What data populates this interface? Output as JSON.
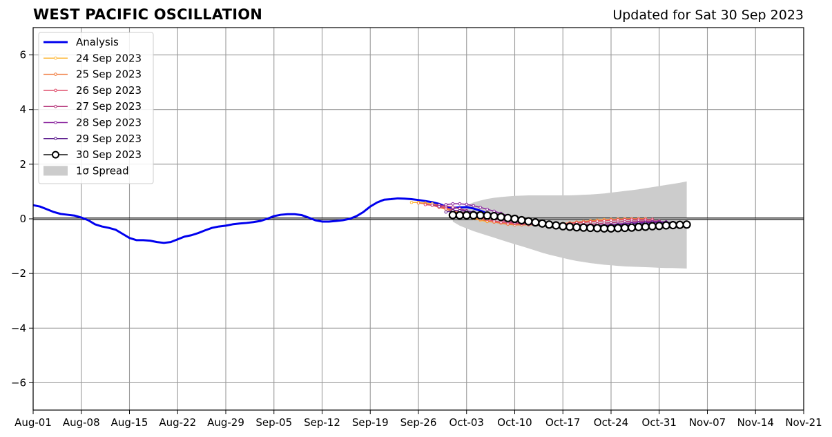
{
  "chart_data": {
    "type": "line",
    "title": "WEST PACIFIC OSCILLATION",
    "subtitle": "Updated for Sat 30 Sep 2023",
    "xlabel": "",
    "ylabel": "",
    "xlim": [
      "2023-08-01",
      "2023-11-21"
    ],
    "ylim": [
      -7,
      7
    ],
    "xticks": [
      "Aug-01",
      "Aug-08",
      "Aug-15",
      "Aug-22",
      "Aug-29",
      "Sep-05",
      "Sep-12",
      "Sep-19",
      "Sep-26",
      "Oct-03",
      "Oct-10",
      "Oct-17",
      "Oct-24",
      "Oct-31",
      "Nov-07",
      "Nov-14",
      "Nov-21"
    ],
    "yticks": [
      -6,
      -4,
      -2,
      0,
      2,
      4,
      6
    ],
    "grid": true,
    "legend_position": "top-left",
    "analysis": {
      "name": "Analysis",
      "color": "#0000ee",
      "start": "2023-08-01",
      "values": [
        0.5,
        0.45,
        0.35,
        0.25,
        0.18,
        0.15,
        0.12,
        0.05,
        -0.05,
        -0.2,
        -0.28,
        -0.33,
        -0.4,
        -0.55,
        -0.7,
        -0.78,
        -0.78,
        -0.8,
        -0.85,
        -0.88,
        -0.85,
        -0.75,
        -0.65,
        -0.6,
        -0.52,
        -0.42,
        -0.33,
        -0.28,
        -0.25,
        -0.2,
        -0.17,
        -0.15,
        -0.12,
        -0.08,
        0.0,
        0.1,
        0.15,
        0.17,
        0.17,
        0.14,
        0.05,
        -0.05,
        -0.1,
        -0.1,
        -0.08,
        -0.05,
        0.0,
        0.1,
        0.25,
        0.45,
        0.6,
        0.7,
        0.72,
        0.75,
        0.74,
        0.72,
        0.69,
        0.65,
        0.61,
        0.55,
        0.45,
        0.4,
        0.42,
        0.43,
        0.38,
        0.3,
        0.2,
        0.15
      ]
    },
    "forecasts": [
      {
        "name": "24 Sep 2023",
        "color": "#fdb83a",
        "start": "2023-09-25",
        "values": [
          0.6,
          0.6,
          0.58,
          0.55,
          0.5,
          0.4,
          0.3,
          0.2,
          0.1,
          0.02,
          -0.05,
          -0.1,
          -0.12,
          -0.15,
          -0.18,
          -0.2,
          -0.2,
          -0.2,
          -0.22,
          -0.24,
          -0.25,
          -0.2,
          -0.17,
          -0.15,
          -0.12,
          -0.1,
          -0.07,
          -0.05,
          -0.03,
          -0.02,
          -0.01,
          0.0,
          0.0,
          0.0,
          0.0
        ]
      },
      {
        "name": "25 Sep 2023",
        "color": "#f07a3c",
        "start": "2023-09-26",
        "values": [
          0.58,
          0.55,
          0.5,
          0.42,
          0.35,
          0.28,
          0.2,
          0.12,
          0.05,
          -0.02,
          -0.08,
          -0.12,
          -0.16,
          -0.2,
          -0.22,
          -0.22,
          -0.22,
          -0.22,
          -0.22,
          -0.22,
          -0.2,
          -0.18,
          -0.15,
          -0.12,
          -0.1,
          -0.08,
          -0.07,
          -0.05,
          -0.03,
          -0.02,
          -0.01,
          0.0,
          0.0,
          0.0
        ]
      },
      {
        "name": "26 Sep 2023",
        "color": "#de4968",
        "start": "2023-09-27",
        "values": [
          0.52,
          0.5,
          0.45,
          0.4,
          0.33,
          0.26,
          0.2,
          0.12,
          0.05,
          -0.02,
          -0.08,
          -0.12,
          -0.15,
          -0.17,
          -0.18,
          -0.2,
          -0.2,
          -0.2,
          -0.2,
          -0.2,
          -0.18,
          -0.17,
          -0.15,
          -0.13,
          -0.11,
          -0.09,
          -0.07,
          -0.05,
          -0.04,
          -0.03,
          -0.02,
          -0.02,
          -0.02,
          -0.02
        ]
      },
      {
        "name": "27 Sep 2023",
        "color": "#b5367a",
        "start": "2023-09-28",
        "values": [
          0.5,
          0.5,
          0.47,
          0.43,
          0.37,
          0.3,
          0.22,
          0.15,
          0.07,
          0.0,
          -0.05,
          -0.1,
          -0.14,
          -0.17,
          -0.2,
          -0.22,
          -0.23,
          -0.24,
          -0.24,
          -0.24,
          -0.23,
          -0.22,
          -0.21,
          -0.2,
          -0.18,
          -0.16,
          -0.14,
          -0.12,
          -0.1,
          -0.09,
          -0.08,
          -0.08,
          -0.08,
          -0.08
        ]
      },
      {
        "name": "28 Sep 2023",
        "color": "#8c29a0",
        "start": "2023-09-29",
        "values": [
          0.45,
          0.52,
          0.55,
          0.55,
          0.53,
          0.48,
          0.42,
          0.35,
          0.28,
          0.2,
          0.12,
          0.05,
          -0.02,
          -0.08,
          -0.13,
          -0.17,
          -0.2,
          -0.22,
          -0.24,
          -0.25,
          -0.26,
          -0.26,
          -0.25,
          -0.24,
          -0.23,
          -0.21,
          -0.19,
          -0.17,
          -0.15,
          -0.13,
          -0.12,
          -0.11,
          -0.11,
          -0.11
        ]
      },
      {
        "name": "29 Sep 2023",
        "color": "#5a1a8c",
        "start": "2023-09-30",
        "values": [
          0.25,
          0.3,
          0.3,
          0.28,
          0.25,
          0.2,
          0.15,
          0.1,
          0.05,
          0.0,
          -0.05,
          -0.1,
          -0.15,
          -0.2,
          -0.22,
          -0.25,
          -0.26,
          -0.27,
          -0.28,
          -0.28,
          -0.28,
          -0.27,
          -0.26,
          -0.25,
          -0.24,
          -0.22,
          -0.2,
          -0.18,
          -0.16,
          -0.15,
          -0.14,
          -0.13,
          -0.13,
          -0.13
        ]
      },
      {
        "name": "30 Sep 2023",
        "color": "#000000",
        "start": "2023-10-01",
        "values": [
          0.14,
          0.13,
          0.13,
          0.13,
          0.13,
          0.12,
          0.1,
          0.07,
          0.03,
          0.0,
          -0.05,
          -0.09,
          -0.13,
          -0.17,
          -0.21,
          -0.24,
          -0.27,
          -0.29,
          -0.31,
          -0.32,
          -0.33,
          -0.34,
          -0.35,
          -0.35,
          -0.34,
          -0.33,
          -0.32,
          -0.3,
          -0.29,
          -0.27,
          -0.26,
          -0.24,
          -0.23,
          -0.22,
          -0.21
        ]
      }
    ],
    "spread": {
      "name": "1σ Spread",
      "color": "#cccccc",
      "start": "2023-10-01",
      "upper": [
        0.1,
        0.35,
        0.5,
        0.6,
        0.67,
        0.73,
        0.77,
        0.8,
        0.82,
        0.84,
        0.85,
        0.86,
        0.86,
        0.86,
        0.86,
        0.86,
        0.86,
        0.86,
        0.87,
        0.88,
        0.89,
        0.91,
        0.93,
        0.96,
        0.99,
        1.02,
        1.05,
        1.08,
        1.12,
        1.16,
        1.2,
        1.24,
        1.28,
        1.32,
        1.37
      ],
      "lower": [
        -0.1,
        -0.25,
        -0.35,
        -0.45,
        -0.53,
        -0.61,
        -0.69,
        -0.77,
        -0.85,
        -0.93,
        -1.0,
        -1.08,
        -1.16,
        -1.24,
        -1.31,
        -1.37,
        -1.43,
        -1.49,
        -1.54,
        -1.58,
        -1.62,
        -1.65,
        -1.68,
        -1.7,
        -1.72,
        -1.74,
        -1.75,
        -1.76,
        -1.77,
        -1.78,
        -1.79,
        -1.8,
        -1.8,
        -1.81,
        -1.82
      ]
    },
    "legend": [
      "Analysis",
      "24 Sep 2023",
      "25 Sep 2023",
      "26 Sep 2023",
      "27 Sep 2023",
      "28 Sep 2023",
      "29 Sep 2023",
      "30 Sep 2023",
      "1σ Spread"
    ]
  }
}
